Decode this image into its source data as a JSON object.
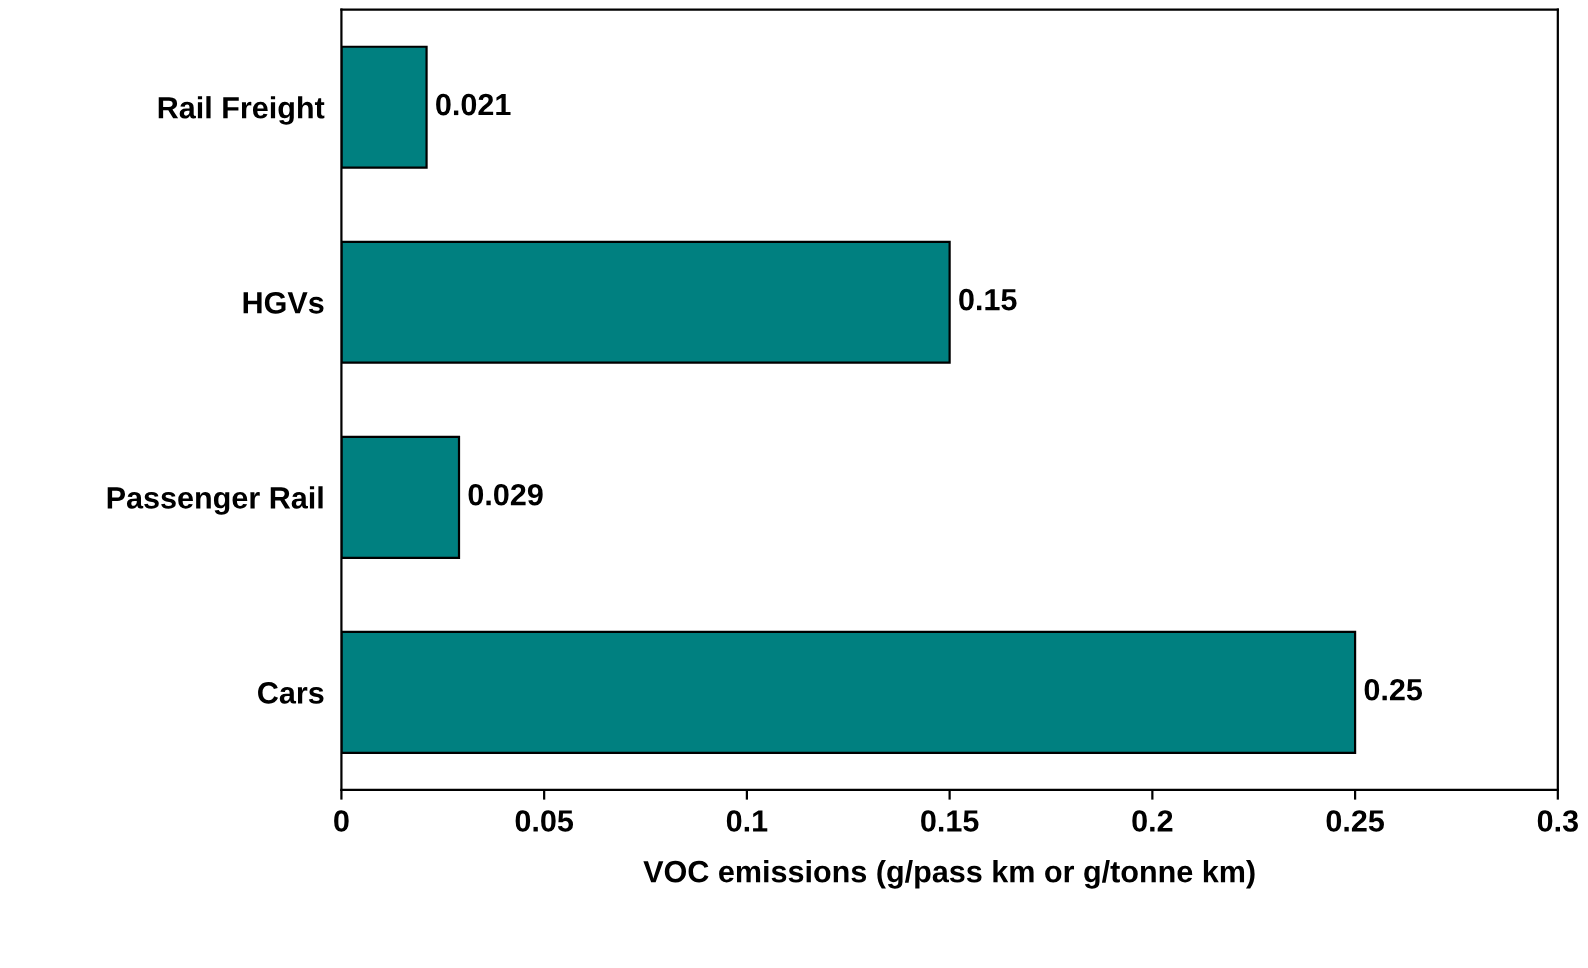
{
  "chart_data": {
    "type": "bar",
    "orientation": "horizontal",
    "xlabel": "VOC emissions (g/pass km or g/tonne km)",
    "categories": [
      "Rail Freight",
      "HGVs",
      "Passenger Rail",
      "Cars"
    ],
    "values": [
      0.021,
      0.15,
      0.029,
      0.25
    ],
    "color": "#008080",
    "xlim": [
      0,
      0.3
    ],
    "xticks": [
      0,
      0.05,
      0.1,
      0.15,
      0.2,
      0.25,
      0.3
    ],
    "data_labels": true,
    "grid": false,
    "legend": false
  }
}
